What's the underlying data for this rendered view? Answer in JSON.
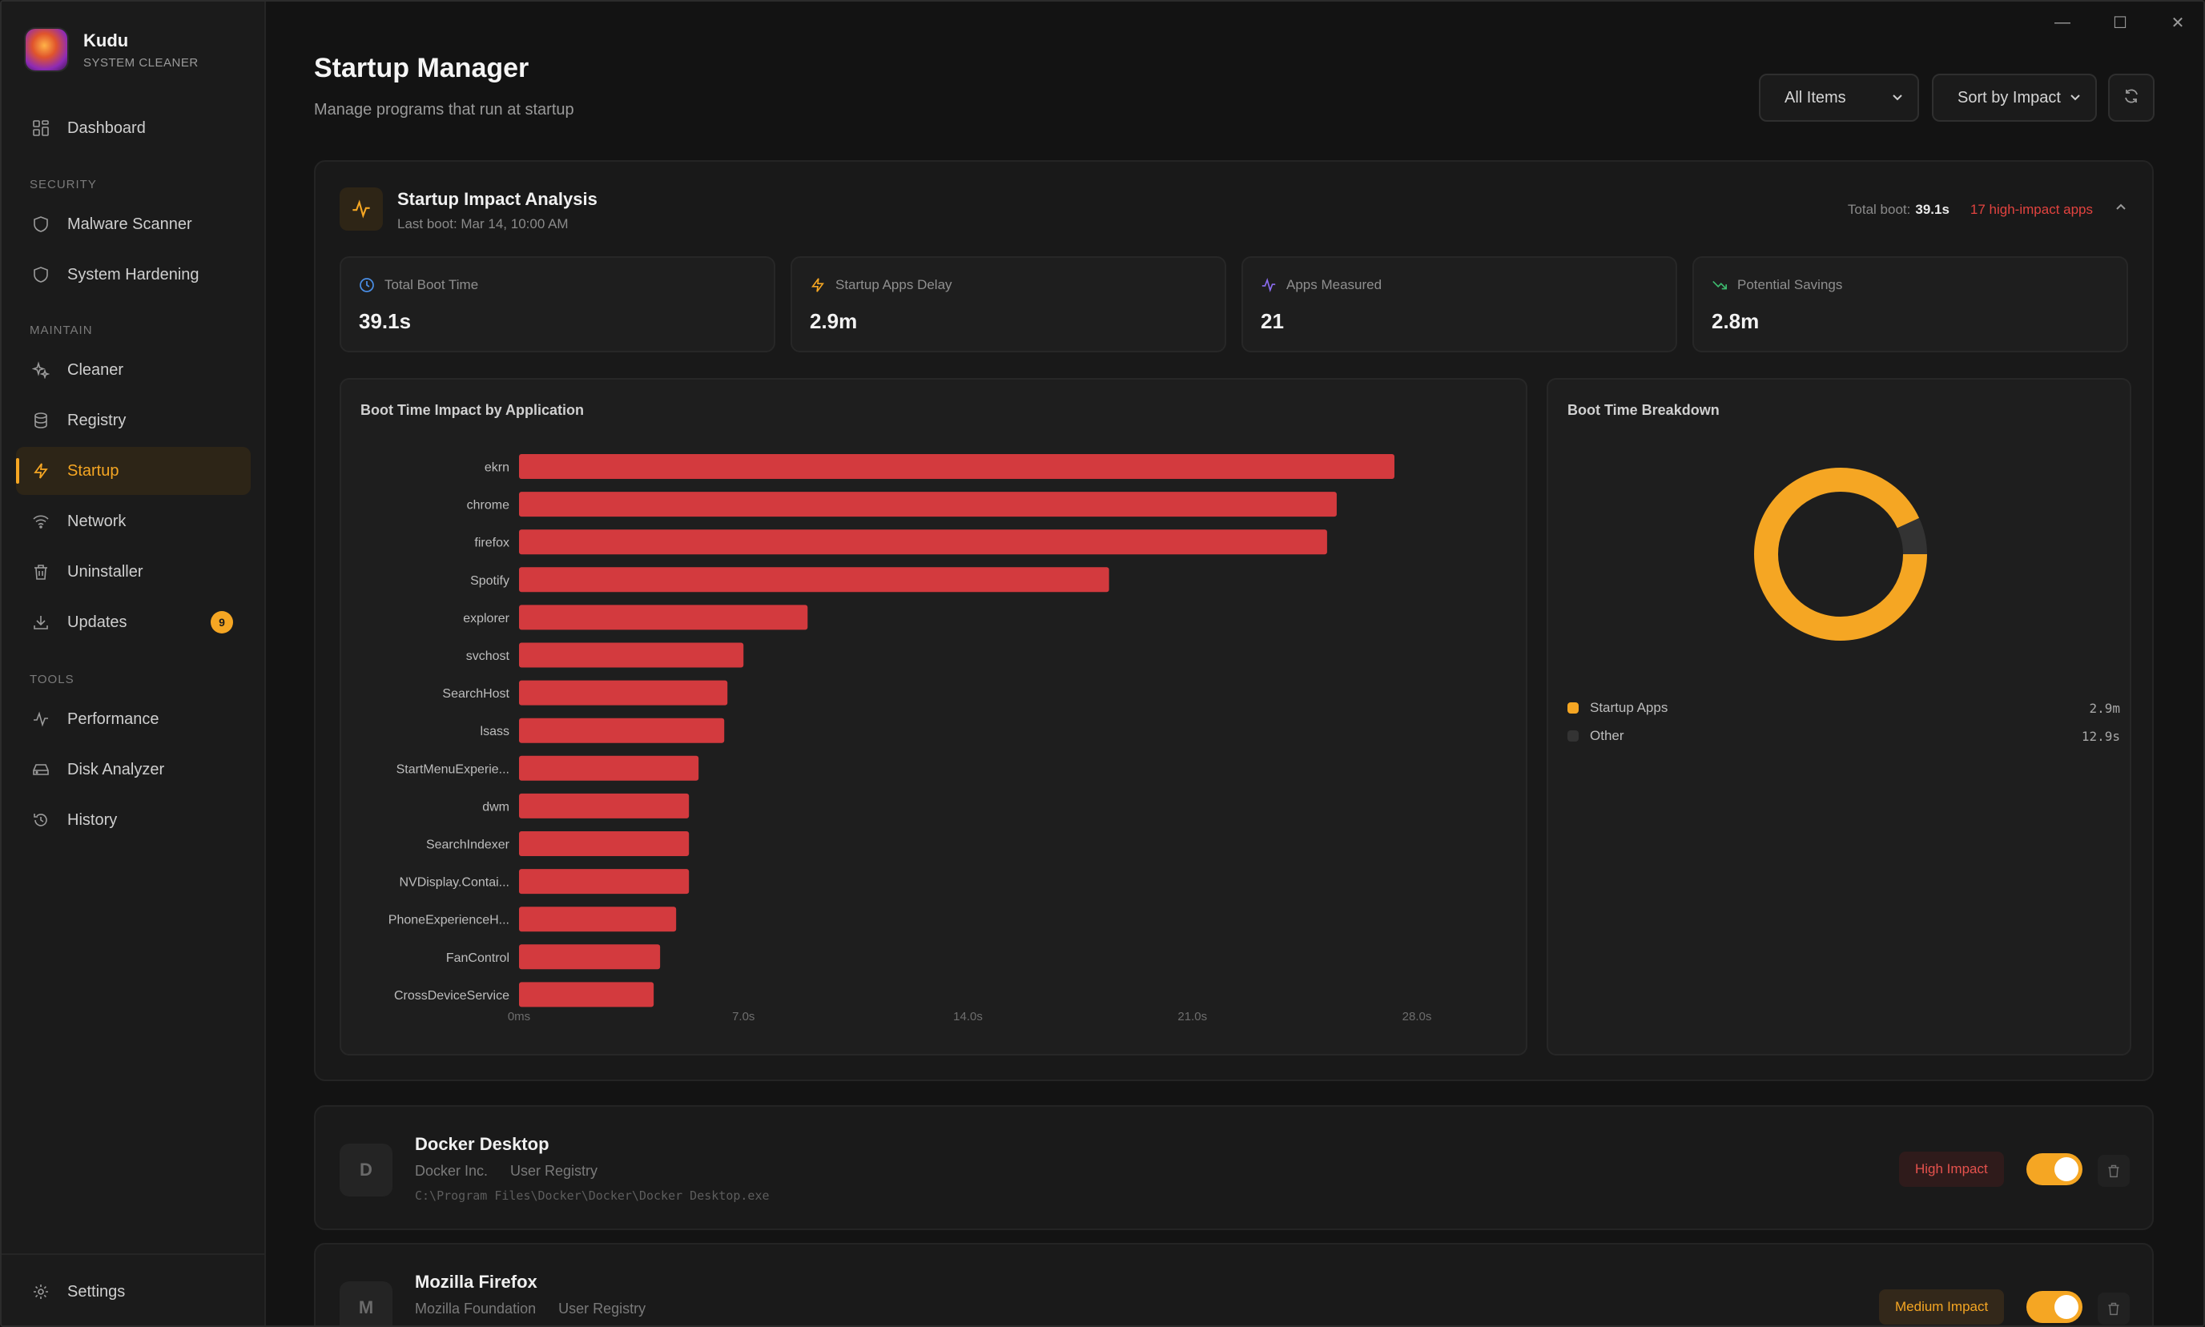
{
  "app": {
    "name": "Kudu",
    "subtitle": "SYSTEM CLEANER"
  },
  "window_controls": {
    "minimize": "—",
    "maximize": "☐",
    "close": "✕"
  },
  "sidebar": {
    "dashboard": "Dashboard",
    "sections": {
      "security": "SECURITY",
      "maintain": "MAINTAIN",
      "tools": "TOOLS"
    },
    "items": {
      "malware": "Malware Scanner",
      "hardening": "System Hardening",
      "cleaner": "Cleaner",
      "registry": "Registry",
      "startup": "Startup",
      "network": "Network",
      "uninstaller": "Uninstaller",
      "updates": "Updates",
      "updates_badge": "9",
      "performance": "Performance",
      "disk": "Disk Analyzer",
      "history": "History"
    },
    "settings": "Settings"
  },
  "header": {
    "title": "Startup Manager",
    "subtitle": "Manage programs that run at startup",
    "filter_select": "All Items",
    "sort_select": "Sort by Impact"
  },
  "analysis": {
    "title": "Startup Impact Analysis",
    "last_boot": "Last boot: Mar 14, 10:00 AM",
    "total_boot_label": "Total boot:",
    "total_boot_value": "39.1s",
    "high_impact": "17 high-impact apps",
    "stats": [
      {
        "label": "Total Boot Time",
        "value": "39.1s",
        "icon": "clock-icon",
        "color": "#4a8fe7"
      },
      {
        "label": "Startup Apps Delay",
        "value": "2.9m",
        "icon": "lightning-icon",
        "color": "#f5a623"
      },
      {
        "label": "Apps Measured",
        "value": "21",
        "icon": "activity-icon",
        "color": "#8b6cf0"
      },
      {
        "label": "Potential Savings",
        "value": "2.8m",
        "icon": "trending-down-icon",
        "color": "#3dbb6e"
      }
    ],
    "bar_chart_title": "Boot Time Impact by Application",
    "donut_title": "Boot Time Breakdown",
    "donut_legend": [
      {
        "label": "Startup Apps",
        "value": "2.9m",
        "color": "#f5a623"
      },
      {
        "label": "Other",
        "value": "12.9s",
        "color": "#333333"
      }
    ]
  },
  "chart_data": [
    {
      "type": "bar",
      "orientation": "horizontal",
      "title": "Boot Time Impact by Application",
      "categories": [
        "ekrn",
        "chrome",
        "firefox",
        "Spotify",
        "explorer",
        "svchost",
        "SearchHost",
        "lsass",
        "StartMenuExperie...",
        "dwm",
        "SearchIndexer",
        "NVDisplay.Contai...",
        "PhoneExperienceH...",
        "FanControl",
        "CrossDeviceService"
      ],
      "values": [
        27.3,
        25.5,
        25.2,
        18.4,
        9.0,
        7.0,
        6.5,
        6.4,
        5.6,
        5.3,
        5.3,
        5.3,
        4.9,
        4.4,
        4.2
      ],
      "x_ticks": [
        "0ms",
        "7.0s",
        "14.0s",
        "21.0s",
        "28.0s"
      ],
      "xlim": [
        0,
        28
      ],
      "unit": "s",
      "color": "#d33a3e",
      "grid": false
    },
    {
      "type": "pie",
      "variant": "donut",
      "title": "Boot Time Breakdown",
      "labels": [
        "Startup Apps",
        "Other"
      ],
      "values": [
        174,
        12.9
      ],
      "display_values": [
        "2.9m",
        "12.9s"
      ],
      "unit": "s",
      "colors": [
        "#f5a623",
        "#333333"
      ]
    }
  ],
  "apps": [
    {
      "initial": "D",
      "name": "Docker Desktop",
      "publisher": "Docker Inc.",
      "location": "User Registry",
      "path": "C:\\Program Files\\Docker\\Docker\\Docker Desktop.exe",
      "impact": "High Impact",
      "enabled": true
    },
    {
      "initial": "M",
      "name": "Mozilla Firefox",
      "publisher": "Mozilla Foundation",
      "location": "User Registry",
      "impact": "Medium Impact",
      "enabled": true
    }
  ]
}
